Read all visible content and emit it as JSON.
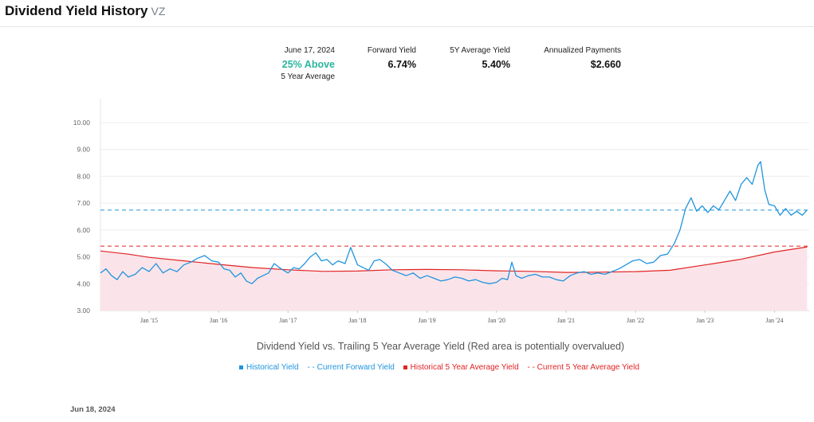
{
  "header": {
    "title": "Dividend Yield History",
    "ticker": "VZ"
  },
  "stats": {
    "date": "June 17, 2024",
    "relative_value": "25% Above",
    "relative_note": "5 Year Average",
    "forward_yield_label": "Forward Yield",
    "forward_yield_value": "6.74%",
    "avg_yield_label": "5Y Average Yield",
    "avg_yield_value": "5.40%",
    "payments_label": "Annualized Payments",
    "payments_value": "$2.660"
  },
  "footer": {
    "date": "Jun 18, 2024"
  },
  "colors": {
    "historical": "#1f95de",
    "average": "#e02424",
    "average_fill": "#fbe4e9",
    "accent": "#2bb5a0"
  },
  "chart_data": {
    "type": "line",
    "title": "",
    "caption": "Dividend Yield vs. Trailing 5 Year Average Yield (Red area is potentially overvalued)",
    "xlabel": "",
    "ylabel": "",
    "x_range": [
      2014.3,
      2024.5
    ],
    "ylim": [
      3.0,
      10.0
    ],
    "y_ticks": [
      "3.00",
      "4.00",
      "5.00",
      "6.00",
      "7.00",
      "8.00",
      "9.00",
      "10.00"
    ],
    "x_ticks": [
      {
        "x": 2015.0,
        "label": "Jan '15"
      },
      {
        "x": 2016.0,
        "label": "Jan '16"
      },
      {
        "x": 2017.0,
        "label": "Jan '17"
      },
      {
        "x": 2018.0,
        "label": "Jan '18"
      },
      {
        "x": 2019.0,
        "label": "Jan '19"
      },
      {
        "x": 2020.0,
        "label": "Jan '20"
      },
      {
        "x": 2021.0,
        "label": "Jan '21"
      },
      {
        "x": 2022.0,
        "label": "Jan '22"
      },
      {
        "x": 2023.0,
        "label": "Jan '23"
      },
      {
        "x": 2024.0,
        "label": "Jan '24"
      }
    ],
    "grid": "horizontal",
    "legend_position": "bottom",
    "legend": [
      "Historical Yield",
      "Current Forward Yield",
      "Historical 5 Year Average Yield",
      "Current 5 Year Average Yield"
    ],
    "series": [
      {
        "name": "Historical Yield",
        "style": "line",
        "points": [
          [
            2014.3,
            4.4
          ],
          [
            2014.38,
            4.55
          ],
          [
            2014.46,
            4.3
          ],
          [
            2014.54,
            4.15
          ],
          [
            2014.62,
            4.45
          ],
          [
            2014.7,
            4.25
          ],
          [
            2014.8,
            4.35
          ],
          [
            2014.9,
            4.6
          ],
          [
            2015.0,
            4.45
          ],
          [
            2015.1,
            4.75
          ],
          [
            2015.2,
            4.4
          ],
          [
            2015.3,
            4.55
          ],
          [
            2015.4,
            4.45
          ],
          [
            2015.5,
            4.7
          ],
          [
            2015.6,
            4.8
          ],
          [
            2015.7,
            4.95
          ],
          [
            2015.8,
            5.05
          ],
          [
            2015.9,
            4.85
          ],
          [
            2016.0,
            4.8
          ],
          [
            2016.08,
            4.55
          ],
          [
            2016.16,
            4.5
          ],
          [
            2016.24,
            4.25
          ],
          [
            2016.32,
            4.4
          ],
          [
            2016.4,
            4.1
          ],
          [
            2016.48,
            4.0
          ],
          [
            2016.56,
            4.2
          ],
          [
            2016.64,
            4.3
          ],
          [
            2016.72,
            4.4
          ],
          [
            2016.8,
            4.75
          ],
          [
            2016.9,
            4.55
          ],
          [
            2017.0,
            4.4
          ],
          [
            2017.08,
            4.6
          ],
          [
            2017.16,
            4.55
          ],
          [
            2017.24,
            4.75
          ],
          [
            2017.32,
            5.0
          ],
          [
            2017.4,
            5.15
          ],
          [
            2017.48,
            4.85
          ],
          [
            2017.56,
            4.9
          ],
          [
            2017.64,
            4.7
          ],
          [
            2017.72,
            4.85
          ],
          [
            2017.82,
            4.75
          ],
          [
            2017.9,
            5.35
          ],
          [
            2018.0,
            4.7
          ],
          [
            2018.08,
            4.6
          ],
          [
            2018.16,
            4.5
          ],
          [
            2018.24,
            4.85
          ],
          [
            2018.32,
            4.9
          ],
          [
            2018.4,
            4.75
          ],
          [
            2018.5,
            4.5
          ],
          [
            2018.6,
            4.4
          ],
          [
            2018.7,
            4.3
          ],
          [
            2018.8,
            4.4
          ],
          [
            2018.9,
            4.2
          ],
          [
            2019.0,
            4.3
          ],
          [
            2019.1,
            4.2
          ],
          [
            2019.2,
            4.1
          ],
          [
            2019.3,
            4.15
          ],
          [
            2019.4,
            4.25
          ],
          [
            2019.5,
            4.2
          ],
          [
            2019.6,
            4.1
          ],
          [
            2019.7,
            4.15
          ],
          [
            2019.8,
            4.05
          ],
          [
            2019.9,
            4.0
          ],
          [
            2020.0,
            4.05
          ],
          [
            2020.08,
            4.2
          ],
          [
            2020.16,
            4.15
          ],
          [
            2020.22,
            4.8
          ],
          [
            2020.28,
            4.3
          ],
          [
            2020.36,
            4.2
          ],
          [
            2020.46,
            4.3
          ],
          [
            2020.56,
            4.35
          ],
          [
            2020.66,
            4.25
          ],
          [
            2020.76,
            4.25
          ],
          [
            2020.86,
            4.15
          ],
          [
            2020.96,
            4.1
          ],
          [
            2021.06,
            4.3
          ],
          [
            2021.16,
            4.4
          ],
          [
            2021.26,
            4.45
          ],
          [
            2021.36,
            4.35
          ],
          [
            2021.46,
            4.4
          ],
          [
            2021.56,
            4.35
          ],
          [
            2021.66,
            4.45
          ],
          [
            2021.76,
            4.55
          ],
          [
            2021.86,
            4.7
          ],
          [
            2021.96,
            4.85
          ],
          [
            2022.06,
            4.9
          ],
          [
            2022.16,
            4.75
          ],
          [
            2022.26,
            4.8
          ],
          [
            2022.36,
            5.05
          ],
          [
            2022.46,
            5.1
          ],
          [
            2022.56,
            5.5
          ],
          [
            2022.64,
            6.0
          ],
          [
            2022.72,
            6.8
          ],
          [
            2022.8,
            7.2
          ],
          [
            2022.88,
            6.7
          ],
          [
            2022.96,
            6.9
          ],
          [
            2023.04,
            6.65
          ],
          [
            2023.12,
            6.9
          ],
          [
            2023.2,
            6.75
          ],
          [
            2023.28,
            7.1
          ],
          [
            2023.36,
            7.45
          ],
          [
            2023.44,
            7.1
          ],
          [
            2023.52,
            7.7
          ],
          [
            2023.6,
            7.95
          ],
          [
            2023.68,
            7.7
          ],
          [
            2023.76,
            8.4
          ],
          [
            2023.8,
            8.55
          ],
          [
            2023.86,
            7.5
          ],
          [
            2023.92,
            6.95
          ],
          [
            2024.0,
            6.9
          ],
          [
            2024.08,
            6.55
          ],
          [
            2024.16,
            6.8
          ],
          [
            2024.24,
            6.55
          ],
          [
            2024.32,
            6.7
          ],
          [
            2024.4,
            6.55
          ],
          [
            2024.47,
            6.75
          ]
        ]
      },
      {
        "name": "Current Forward Yield",
        "style": "dashed",
        "value": 6.74
      },
      {
        "name": "Historical 5 Year Average Yield",
        "style": "line-with-area",
        "points": [
          [
            2014.3,
            5.22
          ],
          [
            2014.7,
            5.1
          ],
          [
            2015.0,
            4.98
          ],
          [
            2015.5,
            4.85
          ],
          [
            2016.0,
            4.72
          ],
          [
            2016.5,
            4.6
          ],
          [
            2017.0,
            4.52
          ],
          [
            2017.5,
            4.46
          ],
          [
            2018.0,
            4.47
          ],
          [
            2018.5,
            4.52
          ],
          [
            2019.0,
            4.53
          ],
          [
            2019.5,
            4.52
          ],
          [
            2020.0,
            4.48
          ],
          [
            2020.5,
            4.46
          ],
          [
            2021.0,
            4.42
          ],
          [
            2021.5,
            4.43
          ],
          [
            2022.0,
            4.45
          ],
          [
            2022.5,
            4.5
          ],
          [
            2023.0,
            4.7
          ],
          [
            2023.5,
            4.9
          ],
          [
            2024.0,
            5.18
          ],
          [
            2024.47,
            5.37
          ]
        ]
      },
      {
        "name": "Current 5 Year Average Yield",
        "style": "dashed",
        "value": 5.4
      }
    ]
  }
}
